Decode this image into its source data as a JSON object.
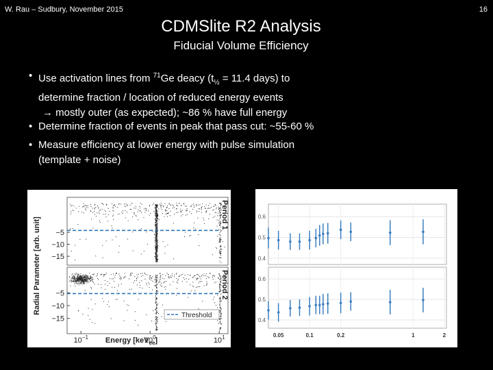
{
  "header": {
    "author": "W. Rau – Sudbury, November 2015",
    "page": "16"
  },
  "title": "CDMSlite R2 Analysis",
  "subtitle": "Fiducial Volume Efficiency",
  "bullets": [
    {
      "parts": [
        "Use activation lines from ",
        "71",
        "Ge deacy (t",
        "½",
        " = 11.4 days) to",
        "determine fraction / location of reduced energy events",
        "→ mostly outer (as expected); ~86 % have full energy"
      ]
    },
    {
      "parts": [
        "Determine fraction of events in peak that pass cut: ~55-60 %"
      ]
    },
    {
      "parts": [
        " Measure efficiency at lower energy with pulse simulation",
        "(template + noise)"
      ]
    }
  ],
  "figures": {
    "left": {
      "type": "scatter",
      "log_x": true,
      "xlabel": "Energy [keV",
      "xlabel_sub": "ee",
      "xlabel_end": "]",
      "ylabel": "Radial Parameter [arb. unit]",
      "xlim": [
        0.063,
        13.4
      ],
      "xticks": [
        {
          "value": 0.1,
          "label": "10",
          "exponent": "−1"
        },
        {
          "value": 1,
          "label": "10",
          "exponent": "0"
        },
        {
          "value": 10,
          "label": "10",
          "exponent": "1"
        }
      ],
      "legend": "Threshold",
      "threshold_color": "#2e75b6",
      "panels": [
        {
          "name": "Period 1",
          "ylim": [
            -18.7,
            9.6
          ],
          "threshold": -4.2,
          "yticks": [
            {
              "value": -5,
              "label": "−5"
            },
            {
              "value": -10,
              "label": "−10"
            },
            {
              "value": -15,
              "label": "−15"
            }
          ]
        },
        {
          "name": "Period 2",
          "ylim": [
            -21,
            5
          ],
          "threshold": -5.3,
          "yticks": [
            {
              "value": -5,
              "label": "−5"
            },
            {
              "value": -10,
              "label": "−10"
            },
            {
              "value": -15,
              "label": "−15"
            }
          ]
        }
      ]
    },
    "right": {
      "type": "scatter",
      "log_x": true,
      "color": "#3a7ebf",
      "xlim": [
        0.04,
        2.1
      ],
      "xticks": [
        0.05,
        0.1,
        0.2,
        1,
        2
      ],
      "x": [
        0.04,
        0.05,
        0.065,
        0.08,
        0.1,
        0.115,
        0.125,
        0.135,
        0.15,
        0.2,
        0.25,
        0.6,
        1.25
      ],
      "panels": [
        {
          "ylim": [
            0.37,
            0.66
          ],
          "yticks": [
            0.4,
            0.5,
            0.6
          ],
          "values": [
            0.497,
            0.487,
            0.48,
            0.48,
            0.487,
            0.497,
            0.51,
            0.517,
            0.52,
            0.537,
            0.527,
            0.523,
            0.527
          ],
          "errors": [
            0.05,
            0.045,
            0.04,
            0.04,
            0.045,
            0.045,
            0.05,
            0.05,
            0.05,
            0.045,
            0.045,
            0.06,
            0.06
          ]
        },
        {
          "ylim": [
            0.36,
            0.657
          ],
          "yticks": [
            0.4,
            0.5,
            0.6
          ],
          "values": [
            0.447,
            0.437,
            0.457,
            0.46,
            0.467,
            0.473,
            0.473,
            0.477,
            0.48,
            0.483,
            0.49,
            0.487,
            0.497
          ],
          "errors": [
            0.045,
            0.045,
            0.04,
            0.04,
            0.045,
            0.045,
            0.045,
            0.05,
            0.05,
            0.05,
            0.045,
            0.06,
            0.06
          ]
        }
      ]
    }
  }
}
